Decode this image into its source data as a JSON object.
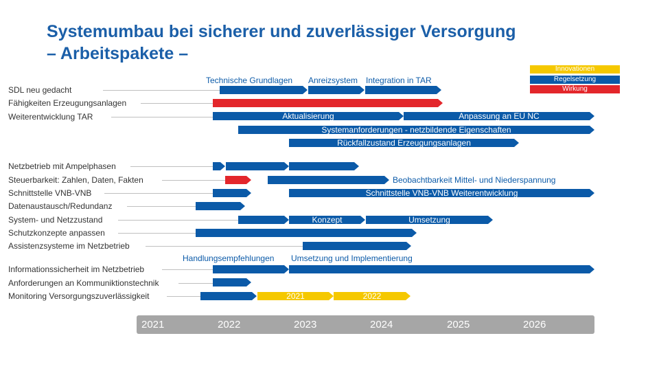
{
  "title": {
    "line1": "Systemumbau bei sicherer und zuverlässiger Versorgung",
    "line2": "– Arbeitspakete –"
  },
  "legend": {
    "innovationen": "Innovationen",
    "regelsetzung": "Regelsetzung",
    "wirkung": "Wirkung"
  },
  "colors": {
    "blue": "#0b5aa8",
    "red": "#e3262b",
    "yellow": "#f5c800",
    "timeline": "#a6a6a6"
  },
  "rows": [
    "SDL neu gedacht",
    "Fähigkeiten Erzeugungsanlagen",
    "Weiterentwicklung TAR",
    "Netzbetrieb mit Ampelphasen",
    "Steuerbarkeit: Zahlen, Daten, Fakten",
    "Schnittstelle VNB-VNB",
    "Datenaustausch/Redundanz",
    "System- und Netzzustand",
    "Schutzkonzepte anpassen",
    "Assistenzsysteme im Netzbetrieb",
    "Informationssicherheit  im Netzbetrieb",
    "Anforderungen  an Kommuniktionstechnik",
    "Monitoring Versorgungszuverlässigkeit"
  ],
  "annotations": {
    "technische": "Technische Grundlagen",
    "anreiz": "Anreizsystem",
    "integration": "Integration in TAR",
    "beobachtbarkeit": "Beobachtbarkeit Mittel- und Niederspannung",
    "handlung": "Handlungsempfehlungen",
    "umsetzung_impl": "Umsetzung und Implementierung"
  },
  "bar_labels": {
    "aktualisierung": "Aktualisierung",
    "anpassung": "Anpassung an EU NC",
    "systemanforderungen": "Systemanforderungen  - netzbildende Eigenschaften",
    "rueckfall": "Rückfallzustand Erzeugungsanlagen",
    "schnittstelle": "Schnittstelle VNB-VNB Weiterentwicklung",
    "konzept": "Konzept",
    "umsetzung": "Umsetzung",
    "y2021": "2021",
    "y2022": "2022"
  },
  "timeline": [
    "2021",
    "2022",
    "2023",
    "2024",
    "2025",
    "2026"
  ]
}
